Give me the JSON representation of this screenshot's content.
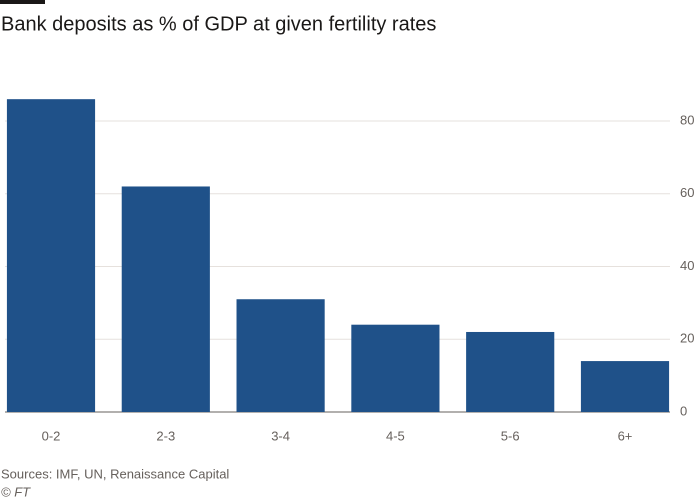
{
  "chart_data": {
    "type": "bar",
    "title": "Bank deposits as % of GDP at given fertility rates",
    "categories": [
      "0-2",
      "2-3",
      "3-4",
      "4-5",
      "5-6",
      "6+"
    ],
    "values": [
      86,
      62,
      31,
      24,
      22,
      14
    ],
    "color": "#1f5189",
    "ylim": [
      0,
      90
    ],
    "yticks": [
      0,
      20,
      40,
      60,
      80
    ],
    "grid": true,
    "source": "Sources: IMF, UN, Renaissance Capital",
    "credit": "© FT"
  }
}
